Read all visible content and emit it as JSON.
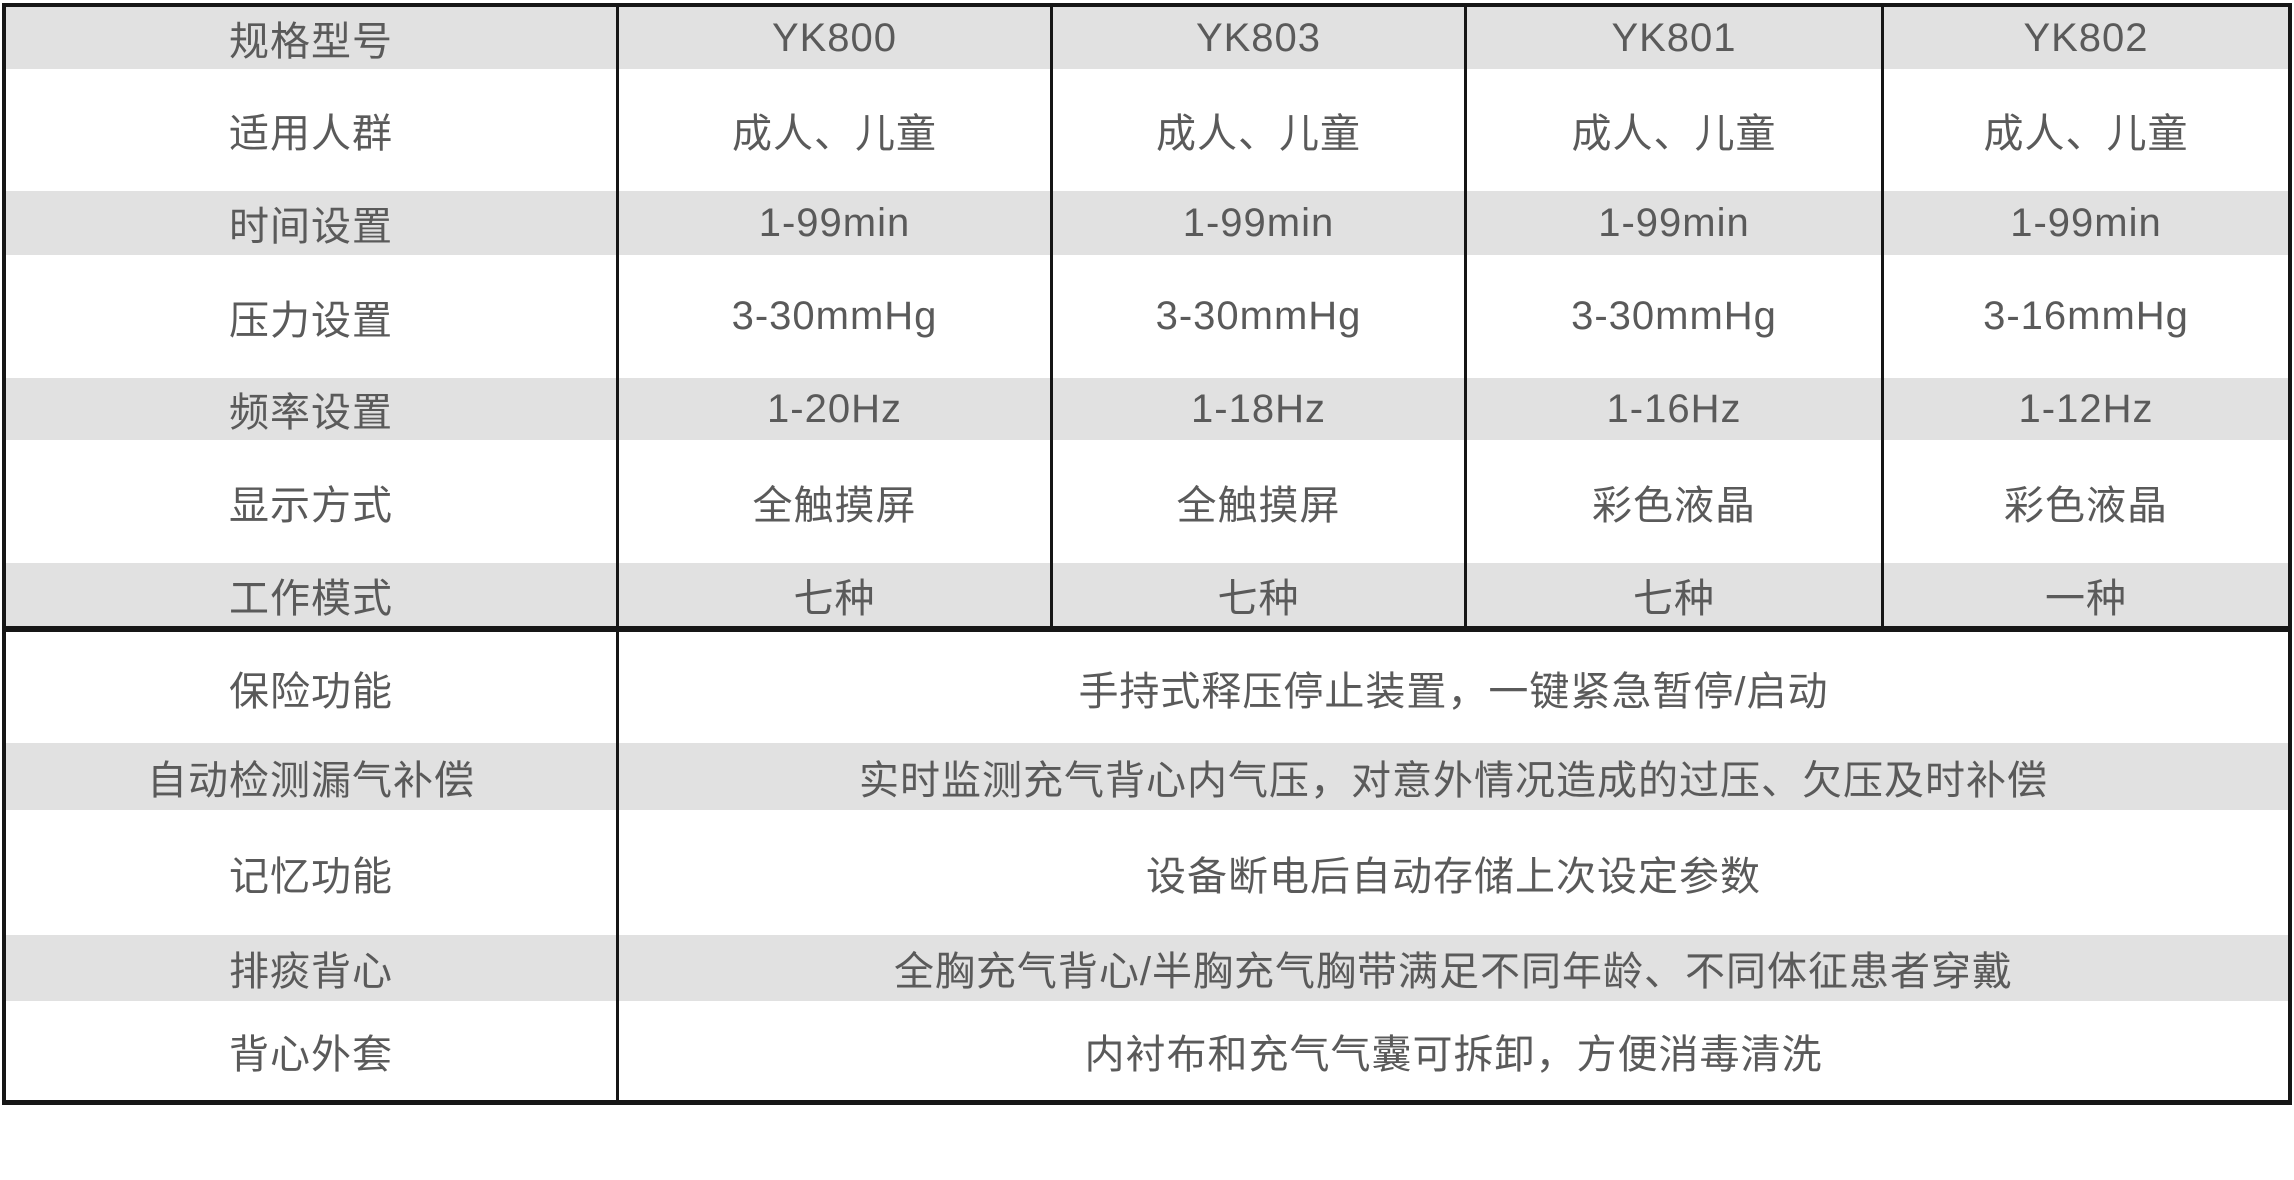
{
  "table": {
    "header": {
      "label": "规格型号",
      "models": [
        "YK800",
        "YK803",
        "YK801",
        "YK802"
      ]
    },
    "spec_rows": [
      {
        "label": "适用人群",
        "values": [
          "成人、儿童",
          "成人、儿童",
          "成人、儿童",
          "成人、儿童"
        ]
      },
      {
        "label": "时间设置",
        "values": [
          "1-99min",
          "1-99min",
          "1-99min",
          "1-99min"
        ]
      },
      {
        "label": "压力设置",
        "values": [
          "3-30mmHg",
          "3-30mmHg",
          "3-30mmHg",
          "3-16mmHg"
        ]
      },
      {
        "label": "频率设置",
        "values": [
          "1-20Hz",
          "1-18Hz",
          "1-16Hz",
          "1-12Hz"
        ]
      },
      {
        "label": "显示方式",
        "values": [
          "全触摸屏",
          "全触摸屏",
          "彩色液晶",
          "彩色液晶"
        ]
      },
      {
        "label": "工作模式",
        "values": [
          "七种",
          "七种",
          "七种",
          "一种"
        ]
      }
    ],
    "feature_rows": [
      {
        "label": "保险功能",
        "value": "手持式释压停止装置，一键紧急暂停/启动"
      },
      {
        "label": "自动检测漏气补偿",
        "value": "实时监测充气背心内气压，对意外情况造成的过压、欠压及时补偿"
      },
      {
        "label": "记忆功能",
        "value": "设备断电后自动存储上次设定参数"
      },
      {
        "label": "排痰背心",
        "value": "全胸充气背心/半胸充气胸带满足不同年龄、不同体征患者穿戴"
      },
      {
        "label": "背心外套",
        "value": "内衬布和充气气囊可拆卸，方便消毒清洗"
      }
    ],
    "colors": {
      "stripe": "#e1e1e1",
      "text": "#5a5a5a",
      "border": "#161616"
    }
  }
}
